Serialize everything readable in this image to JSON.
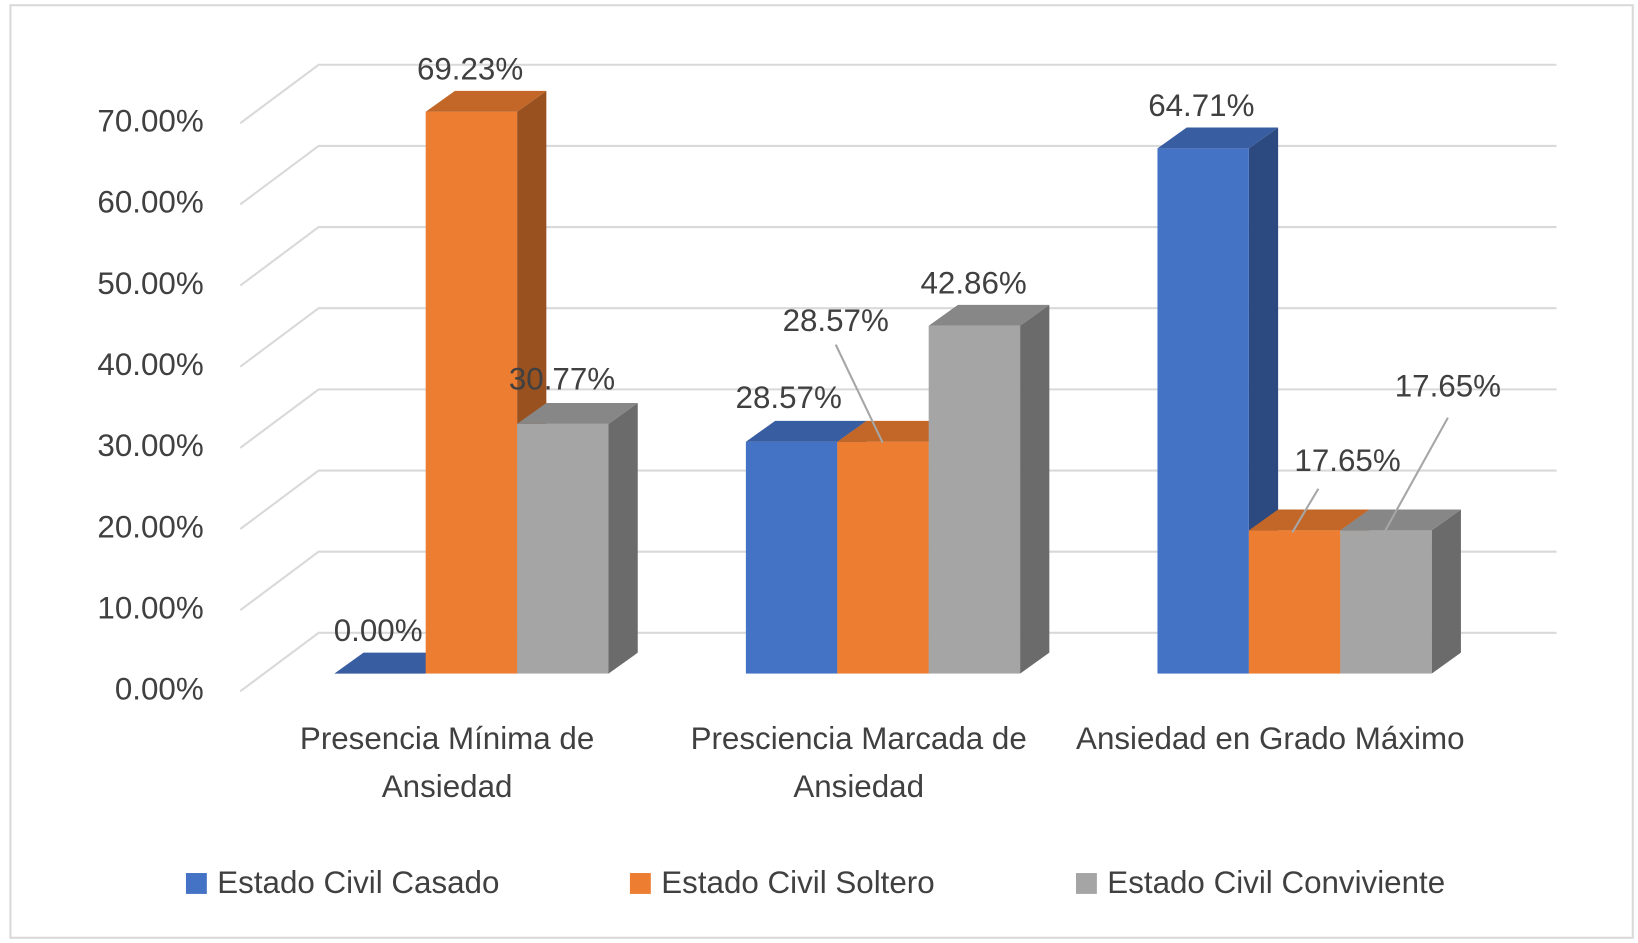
{
  "chart_data": {
    "type": "bar3d",
    "categories": [
      "Presencia Mínima de Ansiedad",
      "Presciencia Marcada de Ansiedad",
      "Ansiedad en Grado Máximo"
    ],
    "series": [
      {
        "name": "Estado Civil Casado",
        "color": "#4472c4",
        "values": [
          0,
          28.57,
          64.71
        ],
        "value_labels": [
          "0.00%",
          "28.57%",
          "64.71%"
        ]
      },
      {
        "name": "Estado Civil Soltero",
        "color": "#ed7d31",
        "values": [
          69.23,
          28.57,
          17.65
        ],
        "value_labels": [
          "69.23%",
          "28.57%",
          "17.65%"
        ]
      },
      {
        "name": "Estado Civil Conviviente",
        "color": "#a5a5a5",
        "values": [
          30.77,
          42.86,
          17.65
        ],
        "value_labels": [
          "30.77%",
          "42.86%",
          "17.65%"
        ]
      }
    ],
    "ylim": [
      0,
      70
    ],
    "yticks": [
      {
        "value": 0,
        "label": "0.00%"
      },
      {
        "value": 10,
        "label": "10.00%"
      },
      {
        "value": 20,
        "label": "20.00%"
      },
      {
        "value": 30,
        "label": "30.00%"
      },
      {
        "value": 40,
        "label": "40.00%"
      },
      {
        "value": 50,
        "label": "50.00%"
      },
      {
        "value": 60,
        "label": "60.00%"
      },
      {
        "value": 70,
        "label": "70.00%"
      }
    ],
    "grid": true,
    "legend": "bottom"
  }
}
